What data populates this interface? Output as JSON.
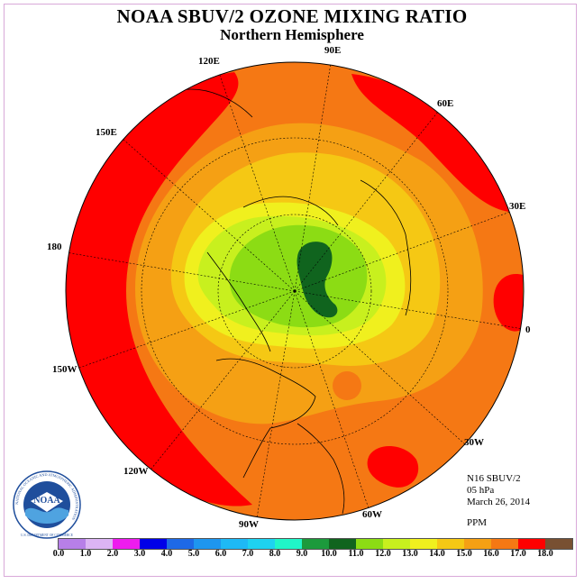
{
  "header": {
    "title": "NOAA SBUV/2 OZONE MIXING RATIO",
    "subtitle": "Northern Hemisphere"
  },
  "longitude_labels": [
    "90E",
    "60E",
    "30E",
    "0",
    "30W",
    "60W",
    "90W",
    "120W",
    "150W",
    "180",
    "150E",
    "120E"
  ],
  "info": {
    "instrument": "N16 SBUV/2",
    "pressure_level": "05 hPa",
    "date": "March 26, 2014",
    "units": "PPM"
  },
  "colorbar": {
    "colors": [
      "#b77fe8",
      "#dcb4f4",
      "#ee1cee",
      "#0000e8",
      "#1e69e6",
      "#1e96ef",
      "#1eb9f5",
      "#1ed2f0",
      "#20f5c8",
      "#1c9a3c",
      "#10641e",
      "#8cdc14",
      "#c8f01e",
      "#f0f01e",
      "#f5c814",
      "#f5a014",
      "#f57814",
      "#ff0000",
      "#785032"
    ],
    "tick_labels": [
      "0.0",
      "1.0",
      "2.0",
      "3.0",
      "4.0",
      "5.0",
      "6.0",
      "7.0",
      "8.0",
      "9.0",
      "10.0",
      "11.0",
      "12.0",
      "13.0",
      "14.0",
      "15.0",
      "16.0",
      "17.0",
      "18.0"
    ]
  },
  "logo": {
    "text": "NOAA",
    "ring_text": "NATIONAL OCEANIC AND ATMOSPHERIC ADMINISTRATION",
    "bottom_text": "U.S. DEPARTMENT OF COMMERCE"
  },
  "map_colors": {
    "red": "#ff0000",
    "dark_orange": "#f57814",
    "orange": "#f5a014",
    "light_orange": "#f5c814",
    "yellow": "#f0f01e",
    "yellow_green": "#c8f01e",
    "light_green": "#8cdc14",
    "dark_green": "#10641e"
  }
}
